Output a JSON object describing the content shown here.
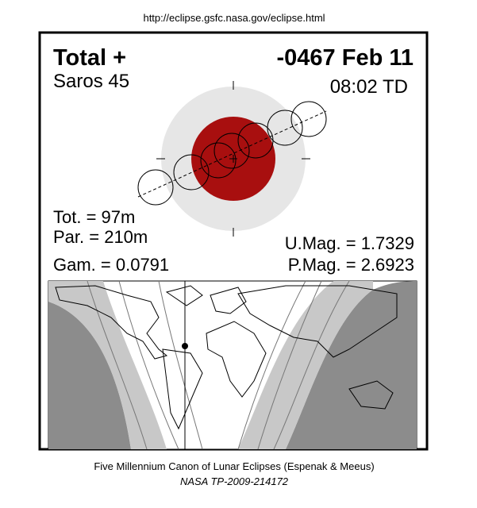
{
  "header": {
    "url": "http://eclipse.gsfc.nasa.gov/eclipse.html"
  },
  "eclipse": {
    "type": "Total +",
    "date": "-0467 Feb 11",
    "saros": "Saros 45",
    "time": "08:02 TD"
  },
  "parameters": {
    "total": "Tot. = 97m",
    "partial": "Par. = 210m",
    "gamma": "Gam. = 0.0791",
    "umbral_magnitude": "U.Mag. = 1.7329",
    "penumbral_magnitude": "P.Mag. = 2.6923"
  },
  "footer": {
    "canon": "Five Millennium Canon of Lunar Eclipses (Espenak & Meeus)",
    "publication": "NASA TP-2009-214172"
  }
}
